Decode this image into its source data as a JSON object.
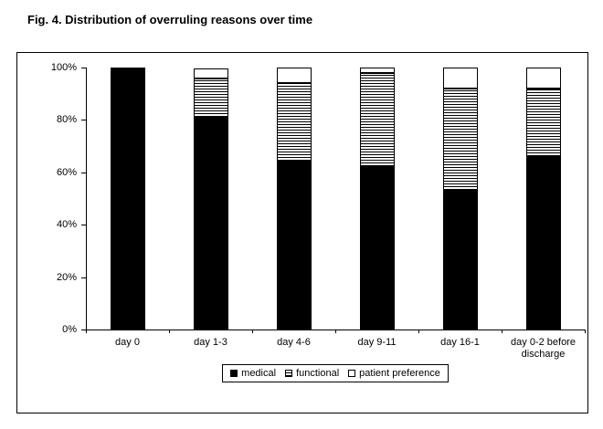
{
  "title": "Fig. 4. Distribution of overruling reasons over time",
  "chart_data": {
    "type": "bar",
    "stacked": true,
    "percent": true,
    "title": "Fig. 4. Distribution of overruling reasons over time",
    "categories": [
      "day 0",
      "day 1-3",
      "day 4-6",
      "day 9-11",
      "day 16-1",
      "day 0-2 before discharge"
    ],
    "series": [
      {
        "name": "medical",
        "fill": "medical",
        "values": [
          100,
          81,
          64,
          62,
          53,
          66
        ]
      },
      {
        "name": "functional",
        "fill": "functional",
        "values": [
          0,
          15,
          30,
          36,
          39,
          26
        ]
      },
      {
        "name": "patient preference",
        "fill": "patient",
        "values": [
          0,
          4,
          6,
          2,
          8,
          8
        ]
      }
    ],
    "ylim": [
      0,
      100
    ],
    "ytick_labels": [
      "0%",
      "20%",
      "40%",
      "60%",
      "80%",
      "100%"
    ],
    "grid": false,
    "legend_position": "bottom",
    "colors": {
      "medical": "#000000",
      "functional": "hatch-horizontal",
      "patient_preference": "#ffffff"
    }
  }
}
